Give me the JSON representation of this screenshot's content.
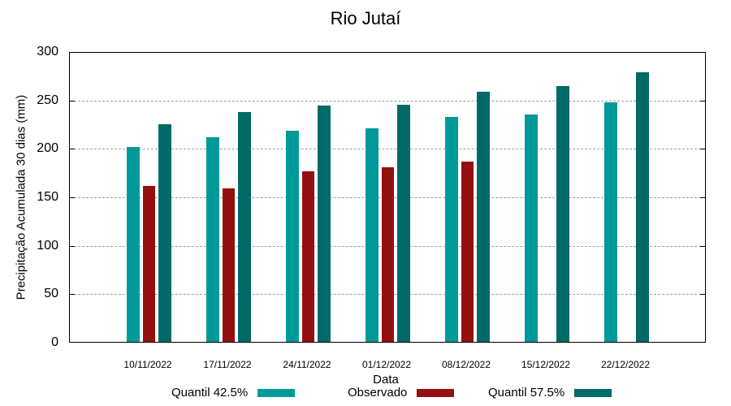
{
  "chart_data": {
    "type": "bar",
    "title": "Rio Jutaí",
    "xlabel": "Data",
    "ylabel": "Precipitação Acumulada 30 dias (mm)",
    "ylim": [
      0,
      300
    ],
    "yticks": [
      0,
      50,
      100,
      150,
      200,
      250,
      300
    ],
    "grid": true,
    "legend_position": "bottom",
    "categories": [
      "10/11/2022",
      "17/11/2022",
      "24/11/2022",
      "01/12/2022",
      "08/12/2022",
      "15/12/2022",
      "22/12/2022"
    ],
    "series": [
      {
        "name": "Quantil 42.5%",
        "color": "#009999",
        "values": [
          201,
          211,
          218,
          220,
          232,
          235,
          247
        ]
      },
      {
        "name": "Observado",
        "color": "#941010",
        "values": [
          161,
          158,
          176,
          180,
          186,
          null,
          null
        ]
      },
      {
        "name": "Quantil 57.5%",
        "color": "#006a66",
        "values": [
          225,
          237,
          244,
          245,
          258,
          264,
          278
        ]
      }
    ]
  }
}
